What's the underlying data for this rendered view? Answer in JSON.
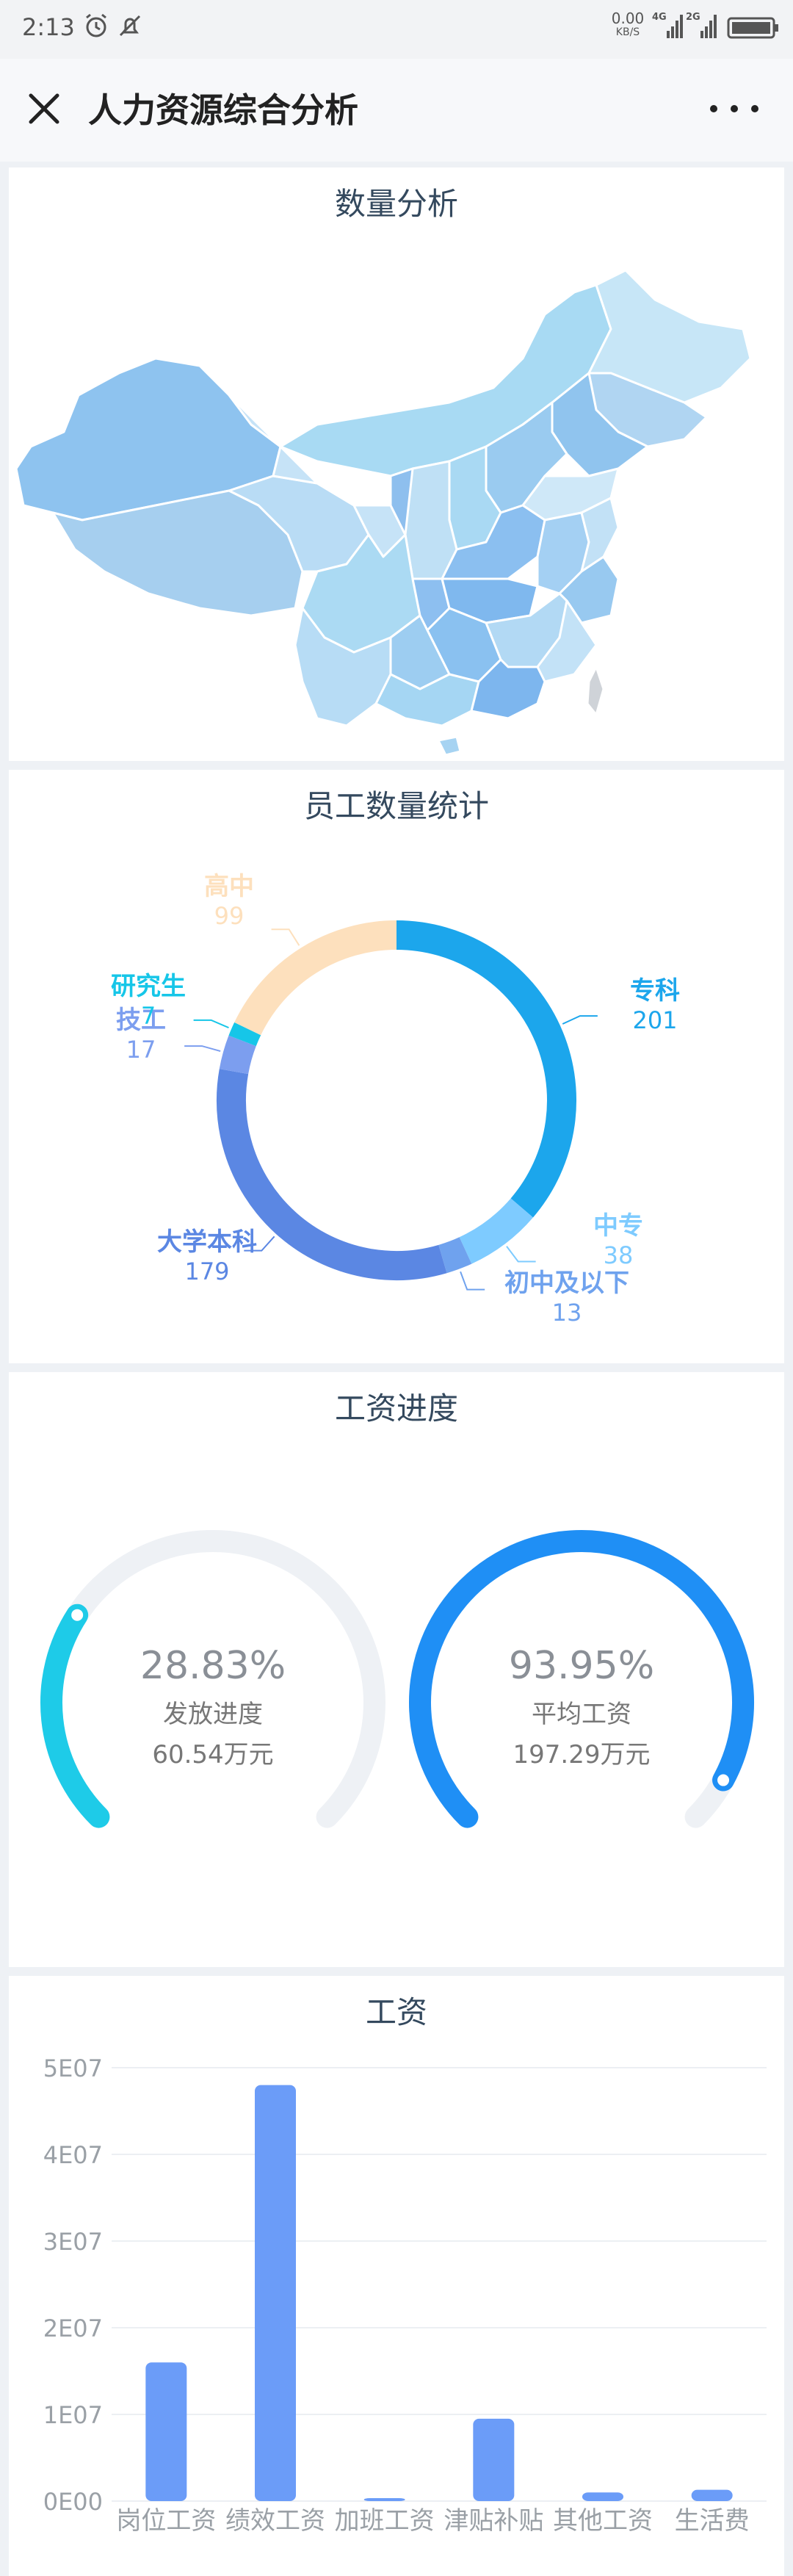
{
  "status_bar": {
    "time": "2:13",
    "net_speed": "0.00",
    "net_unit": "KB/S",
    "net_4g": "4G",
    "net_2g": "2G"
  },
  "header": {
    "title": "人力资源综合分析"
  },
  "map_card": {
    "title": "数量分析"
  },
  "donut_card": {
    "title": "员工数量统计",
    "segments": [
      {
        "name": "专科",
        "value": 201,
        "color": "#1ca6ec"
      },
      {
        "name": "中专",
        "value": 38,
        "color": "#7ecbff"
      },
      {
        "name": "初中及以下",
        "value": 13,
        "color": "#6fa2ee"
      },
      {
        "name": "大学本科",
        "value": 179,
        "color": "#5b87e3"
      },
      {
        "name": "技工",
        "value": 17,
        "color": "#7c9eef"
      },
      {
        "name": "研究生",
        "value": 7,
        "color": "#16c6e8"
      },
      {
        "name": "高中",
        "value": 99,
        "color": "#fde0bd"
      }
    ]
  },
  "progress_card": {
    "title": "工资进度",
    "gauges": [
      {
        "percent": "28.83%",
        "label": "发放进度",
        "value": "60.54万元",
        "fraction": 0.2883,
        "color": "#1ecbe8"
      },
      {
        "percent": "93.95%",
        "label": "平均工资",
        "value": "197.29万元",
        "fraction": 0.9395,
        "color": "#1f8ff5"
      }
    ]
  },
  "bar_card": {
    "title": "工资"
  },
  "chart_data": [
    {
      "type": "pie",
      "title": "员工数量统计",
      "categories": [
        "专科",
        "中专",
        "初中及以下",
        "大学本科",
        "技工",
        "研究生",
        "高中"
      ],
      "values": [
        201,
        38,
        13,
        179,
        17,
        7,
        99
      ]
    },
    {
      "type": "bar",
      "title": "工资",
      "categories": [
        "岗位工资",
        "绩效工资",
        "加班工资",
        "津贴补贴",
        "其他工资",
        "生活费"
      ],
      "values": [
        16000000,
        48000000,
        300000,
        9500000,
        1000000,
        1300000
      ],
      "ytick_labels": [
        "0E00",
        "1E07",
        "2E07",
        "3E07",
        "4E07",
        "5E07"
      ],
      "ylim": [
        0,
        50000000
      ],
      "color": "#6b9cf8",
      "grid": true
    }
  ]
}
